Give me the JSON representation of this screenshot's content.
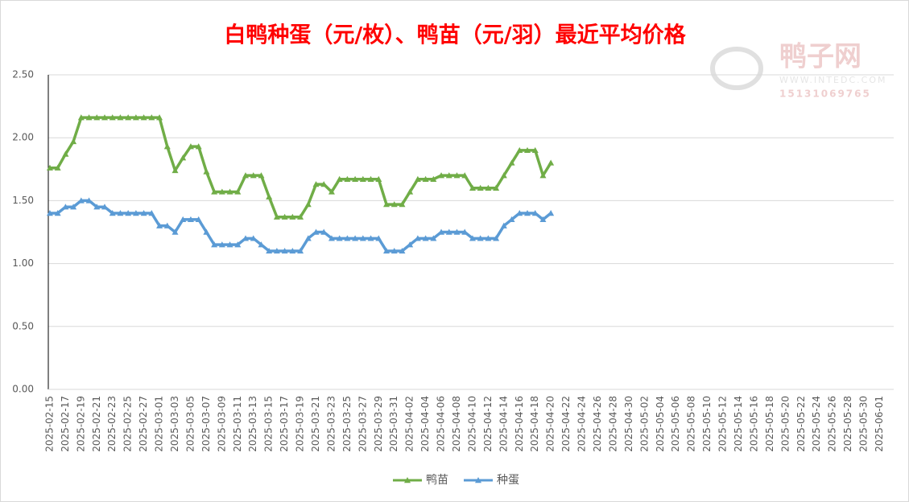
{
  "chart_data": {
    "type": "line",
    "title": "白鸭种蛋（元/枚）、鸭苗（元/羽）最近平均价格",
    "watermark": {
      "name": "鸭子网",
      "url": "WWW.INTEDC.COM",
      "phone": "15131069765"
    },
    "categories": [
      "2025-02-15",
      null,
      "2025-02-17",
      null,
      "2025-02-19",
      null,
      "2025-02-21",
      null,
      "2025-02-23",
      null,
      "2025-02-25",
      null,
      "2025-02-27",
      null,
      "2025-03-01",
      null,
      "2025-03-03",
      null,
      "2025-03-05",
      null,
      "2025-03-07",
      null,
      "2025-03-09",
      null,
      "2025-03-11",
      null,
      "2025-03-13",
      null,
      "2025-03-15",
      null,
      "2025-03-17",
      null,
      "2025-03-19",
      null,
      "2025-03-21",
      null,
      "2025-03-23",
      null,
      "2025-03-25",
      null,
      "2025-03-27",
      null,
      "2025-03-29",
      null,
      "2025-03-31",
      null,
      "2025-04-02",
      null,
      "2025-04-04",
      null,
      "2025-04-06",
      null,
      "2025-04-08",
      null,
      "2025-04-10",
      null,
      "2025-04-12",
      null,
      "2025-04-14",
      null,
      "2025-04-16",
      null,
      "2025-04-18",
      null,
      "2025-04-20",
      null,
      "2025-04-22",
      null,
      "2025-04-24",
      null,
      "2025-04-26",
      null,
      "2025-04-28",
      null,
      "2025-04-30",
      null,
      "2025-05-02",
      null,
      "2025-05-04",
      null,
      "2025-05-06",
      null,
      "2025-05-08",
      null,
      "2025-05-10",
      null,
      "2025-05-12",
      null,
      "2025-05-14",
      null,
      "2025-05-16",
      null,
      "2025-05-18",
      null,
      "2025-05-20",
      null,
      "2025-05-22",
      null,
      "2025-05-24",
      null,
      "2025-05-26",
      null,
      "2025-05-28",
      null,
      "2025-05-30",
      null,
      "2025-06-01",
      null
    ],
    "series": [
      {
        "name": "鸭苗",
        "color": "#70ad47",
        "values": [
          1.76,
          1.76,
          1.87,
          1.97,
          2.16,
          2.16,
          2.16,
          2.16,
          2.16,
          2.16,
          2.16,
          2.16,
          2.16,
          2.16,
          2.16,
          1.93,
          1.74,
          1.84,
          1.93,
          1.93,
          1.73,
          1.57,
          1.57,
          1.57,
          1.57,
          1.7,
          1.7,
          1.7,
          1.53,
          1.37,
          1.37,
          1.37,
          1.37,
          1.47,
          1.63,
          1.63,
          1.57,
          1.67,
          1.67,
          1.67,
          1.67,
          1.67,
          1.67,
          1.47,
          1.47,
          1.47,
          1.57,
          1.67,
          1.67,
          1.67,
          1.7,
          1.7,
          1.7,
          1.7,
          1.6,
          1.6,
          1.6,
          1.6,
          1.7,
          1.8,
          1.9,
          1.9,
          1.9,
          1.7,
          1.8,
          null,
          null,
          null,
          null,
          null,
          null,
          null,
          null,
          null,
          null,
          null,
          null,
          null,
          null,
          null,
          null,
          null,
          null,
          null,
          null,
          null,
          null,
          null,
          null,
          null,
          null,
          null,
          null,
          null,
          null,
          null,
          null,
          null,
          null,
          null,
          null,
          null,
          null,
          null,
          null,
          null,
          null,
          null
        ]
      },
      {
        "name": "种蛋",
        "color": "#5b9bd5",
        "values": [
          1.4,
          1.4,
          1.45,
          1.45,
          1.5,
          1.5,
          1.45,
          1.45,
          1.4,
          1.4,
          1.4,
          1.4,
          1.4,
          1.4,
          1.3,
          1.3,
          1.25,
          1.35,
          1.35,
          1.35,
          1.25,
          1.15,
          1.15,
          1.15,
          1.15,
          1.2,
          1.2,
          1.15,
          1.1,
          1.1,
          1.1,
          1.1,
          1.1,
          1.2,
          1.25,
          1.25,
          1.2,
          1.2,
          1.2,
          1.2,
          1.2,
          1.2,
          1.2,
          1.1,
          1.1,
          1.1,
          1.15,
          1.2,
          1.2,
          1.2,
          1.25,
          1.25,
          1.25,
          1.25,
          1.2,
          1.2,
          1.2,
          1.2,
          1.3,
          1.35,
          1.4,
          1.4,
          1.4,
          1.35,
          1.4,
          null,
          null,
          null,
          null,
          null,
          null,
          null,
          null,
          null,
          null,
          null,
          null,
          null,
          null,
          null,
          null,
          null,
          null,
          null,
          null,
          null,
          null,
          null,
          null,
          null,
          null,
          null,
          null,
          null,
          null,
          null,
          null,
          null,
          null,
          null,
          null,
          null,
          null,
          null,
          null,
          null,
          null,
          null
        ]
      }
    ],
    "ylim": [
      0,
      2.5
    ],
    "yticks": [
      {
        "value": 0,
        "label": "0.00"
      },
      {
        "value": 0.5,
        "label": "0.50"
      },
      {
        "value": 1,
        "label": "1.00"
      },
      {
        "value": 1.5,
        "label": "1.50"
      },
      {
        "value": 2,
        "label": "2.00"
      },
      {
        "value": 2.5,
        "label": "2.50"
      }
    ],
    "grid": true,
    "legend": "bottom"
  }
}
